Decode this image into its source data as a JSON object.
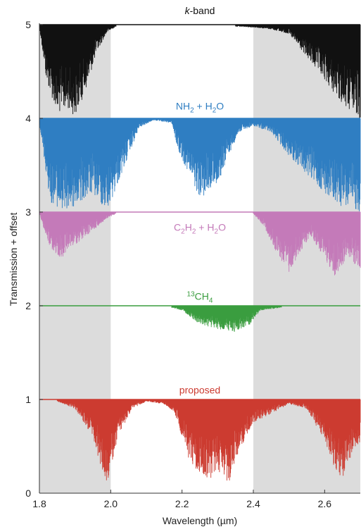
{
  "chart_data": {
    "type": "line",
    "xlabel": "Wavelength (µm)",
    "ylabel": "Transmission + offset",
    "xlim": [
      1.8,
      2.7
    ],
    "ylim": [
      0,
      5
    ],
    "x_ticks": [
      "1.8",
      "2.0",
      "2.2",
      "2.4",
      "2.6"
    ],
    "y_ticks": [
      "0",
      "1",
      "2",
      "3",
      "4",
      "5"
    ],
    "shaded_bands": [
      [
        1.8,
        2.0
      ],
      [
        2.4,
        2.7
      ]
    ],
    "grid": false,
    "series": [
      {
        "label_html": "<tspan font-style='italic'>k</tspan>-band",
        "label_text": "k-band",
        "color": "#111111",
        "offset": 4,
        "label_y": 5.15,
        "points": [
          [
            1.8,
            0.98
          ],
          [
            1.82,
            0.4
          ],
          [
            1.85,
            0.05
          ],
          [
            1.88,
            0.1
          ],
          [
            1.9,
            0.02
          ],
          [
            1.93,
            0.3
          ],
          [
            1.96,
            0.7
          ],
          [
            1.99,
            0.92
          ],
          [
            2.02,
            0.99
          ],
          [
            2.1,
            1.0
          ],
          [
            2.2,
            0.995
          ],
          [
            2.3,
            0.99
          ],
          [
            2.4,
            0.97
          ],
          [
            2.45,
            0.95
          ],
          [
            2.5,
            0.9
          ],
          [
            2.54,
            0.7
          ],
          [
            2.58,
            0.5
          ],
          [
            2.62,
            0.3
          ],
          [
            2.65,
            0.15
          ],
          [
            2.68,
            0.03
          ],
          [
            2.7,
            0.0
          ]
        ]
      },
      {
        "label_html": "NH<tspan dy='4' font-size='10'>2</tspan><tspan dy='-4'> + H</tspan><tspan dy='4' font-size='10'>2</tspan><tspan dy='-4'>O</tspan>",
        "label_text": "NH2 + H2O",
        "color": "#2f7ec2",
        "offset": 3,
        "label_y": 4.13,
        "points": [
          [
            1.8,
            0.95
          ],
          [
            1.83,
            0.1
          ],
          [
            1.87,
            0.0
          ],
          [
            1.9,
            0.05
          ],
          [
            1.95,
            0.2
          ],
          [
            1.99,
            0.0
          ],
          [
            2.02,
            0.3
          ],
          [
            2.05,
            0.6
          ],
          [
            2.08,
            0.9
          ],
          [
            2.12,
            0.98
          ],
          [
            2.17,
            0.95
          ],
          [
            2.19,
            0.65
          ],
          [
            2.22,
            0.4
          ],
          [
            2.25,
            0.15
          ],
          [
            2.27,
            0.2
          ],
          [
            2.3,
            0.3
          ],
          [
            2.33,
            0.6
          ],
          [
            2.36,
            0.85
          ],
          [
            2.4,
            0.92
          ],
          [
            2.45,
            0.85
          ],
          [
            2.5,
            0.6
          ],
          [
            2.55,
            0.4
          ],
          [
            2.6,
            0.2
          ],
          [
            2.65,
            0.05
          ],
          [
            2.7,
            0.0
          ]
        ]
      },
      {
        "label_html": "C<tspan dy='4' font-size='10'>2</tspan><tspan dy='-4'>H</tspan><tspan dy='4' font-size='10'>2</tspan><tspan dy='-4'> + H</tspan><tspan dy='4' font-size='10'>2</tspan><tspan dy='-4'>O</tspan>",
        "label_text": "C2H2 + H2O",
        "color": "#c47ab9",
        "offset": 2,
        "label_y": 2.84,
        "points": [
          [
            1.8,
            0.98
          ],
          [
            1.83,
            0.6
          ],
          [
            1.86,
            0.5
          ],
          [
            1.9,
            0.65
          ],
          [
            1.95,
            0.8
          ],
          [
            1.99,
            0.93
          ],
          [
            2.02,
            0.99
          ],
          [
            2.2,
            1.0
          ],
          [
            2.4,
            0.98
          ],
          [
            2.43,
            0.85
          ],
          [
            2.46,
            0.6
          ],
          [
            2.5,
            0.35
          ],
          [
            2.53,
            0.55
          ],
          [
            2.56,
            0.75
          ],
          [
            2.6,
            0.5
          ],
          [
            2.63,
            0.3
          ],
          [
            2.66,
            0.5
          ],
          [
            2.7,
            0.4
          ]
        ]
      },
      {
        "label_html": "<tspan dy='-5' font-size='10'>13</tspan><tspan dy='5'>CH</tspan><tspan dy='4' font-size='10'>4</tspan>",
        "label_text": "13CH4",
        "color": "#3a9d3f",
        "offset": 1,
        "label_y": 2.1,
        "points": [
          [
            1.8,
            1.0
          ],
          [
            2.0,
            1.0
          ],
          [
            2.15,
            1.0
          ],
          [
            2.2,
            0.95
          ],
          [
            2.25,
            0.8
          ],
          [
            2.3,
            0.75
          ],
          [
            2.35,
            0.72
          ],
          [
            2.39,
            0.8
          ],
          [
            2.42,
            0.95
          ],
          [
            2.5,
            0.99
          ],
          [
            2.6,
            1.0
          ],
          [
            2.7,
            1.0
          ]
        ]
      },
      {
        "label_html": "proposed",
        "label_text": "proposed",
        "color": "#cc3b30",
        "offset": 0,
        "label_y": 1.1,
        "points": [
          [
            1.8,
            1.0
          ],
          [
            1.85,
            0.98
          ],
          [
            1.9,
            0.9
          ],
          [
            1.95,
            0.6
          ],
          [
            1.97,
            0.3
          ],
          [
            1.99,
            0.05
          ],
          [
            2.02,
            0.6
          ],
          [
            2.06,
            0.9
          ],
          [
            2.1,
            0.98
          ],
          [
            2.15,
            0.95
          ],
          [
            2.18,
            0.85
          ],
          [
            2.22,
            0.35
          ],
          [
            2.25,
            0.2
          ],
          [
            2.28,
            0.15
          ],
          [
            2.3,
            0.25
          ],
          [
            2.33,
            0.1
          ],
          [
            2.36,
            0.45
          ],
          [
            2.4,
            0.75
          ],
          [
            2.45,
            0.85
          ],
          [
            2.5,
            0.95
          ],
          [
            2.55,
            0.9
          ],
          [
            2.6,
            0.55
          ],
          [
            2.63,
            0.25
          ],
          [
            2.65,
            0.15
          ],
          [
            2.68,
            0.45
          ],
          [
            2.7,
            0.55
          ]
        ]
      }
    ]
  }
}
